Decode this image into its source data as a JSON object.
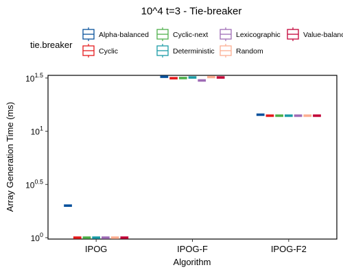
{
  "chart_data": {
    "type": "box",
    "title": "10^4 t=3 - Tie-breaker",
    "xlabel": "Algorithm",
    "ylabel": "Array Generation Time (ms)",
    "y_scale": "log10",
    "ylim": [
      0.97,
      33.5
    ],
    "y_ticks": [
      {
        "value": 1,
        "base": "10",
        "exp": "0"
      },
      {
        "value": 3.162,
        "base": "10",
        "exp": "0.5"
      },
      {
        "value": 10,
        "base": "10",
        "exp": "1"
      },
      {
        "value": 31.62,
        "base": "10",
        "exp": "1.5"
      }
    ],
    "categories": [
      "IPOG",
      "IPOG-F",
      "IPOG-F2"
    ],
    "legend": {
      "title": "tie.breaker",
      "position": "top",
      "entries": [
        "Alpha-balanced",
        "Cyclic",
        "Cyclic-next",
        "Deterministic",
        "Lexicographic",
        "Random",
        "Value-balanced"
      ]
    },
    "series": [
      {
        "name": "Alpha-balanced",
        "color": "#08519c",
        "values": [
          2,
          32.5,
          14.3
        ]
      },
      {
        "name": "Cyclic",
        "color": "#e41a1c",
        "values": [
          1,
          31.5,
          14.0
        ]
      },
      {
        "name": "Cyclic-next",
        "color": "#4daf4a",
        "values": [
          1,
          31.6,
          14.0
        ]
      },
      {
        "name": "Deterministic",
        "color": "#1a9ba6",
        "values": [
          1,
          32.0,
          14.0
        ]
      },
      {
        "name": "Lexicographic",
        "color": "#9e6bb5",
        "values": [
          1,
          30.0,
          14.0
        ]
      },
      {
        "name": "Random",
        "color": "#fcae91",
        "values": [
          1,
          32.3,
          14.0
        ]
      },
      {
        "name": "Value-balanced",
        "color": "#c20037",
        "values": [
          1,
          32.0,
          14.0
        ]
      }
    ]
  }
}
